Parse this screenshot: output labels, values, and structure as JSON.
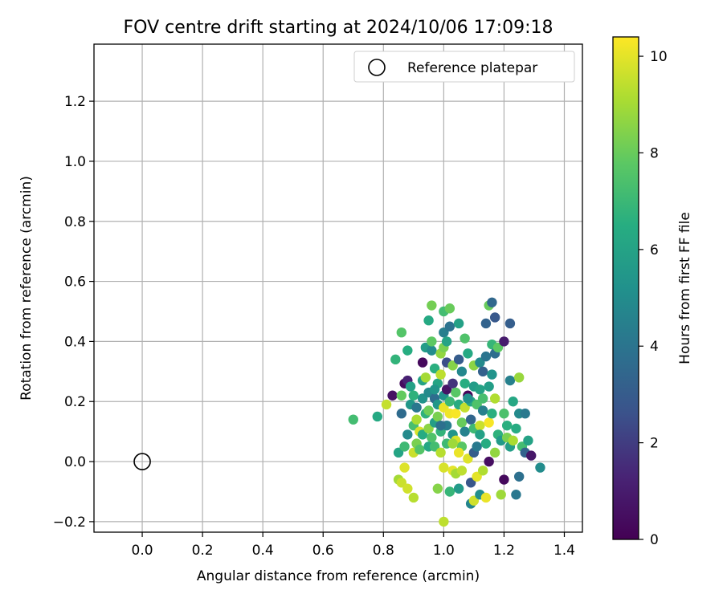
{
  "chart_data": {
    "type": "scatter",
    "title": "FOV centre drift starting at 2024/10/06 17:09:18",
    "xlabel": "Angular distance from reference (arcmin)",
    "ylabel": "Rotation from reference (arcmin)",
    "xlim": [
      -0.16,
      1.46
    ],
    "ylim": [
      -0.235,
      1.39
    ],
    "xticks": [
      0.0,
      0.2,
      0.4,
      0.6,
      0.8,
      1.0,
      1.2,
      1.4
    ],
    "xtick_labels": [
      "0.0",
      "0.2",
      "0.4",
      "0.6",
      "0.8",
      "1.0",
      "1.2",
      "1.4"
    ],
    "yticks": [
      -0.2,
      0.0,
      0.2,
      0.4,
      0.6,
      0.8,
      1.0,
      1.2
    ],
    "ytick_labels": [
      "−0.2",
      "0.0",
      "0.2",
      "0.4",
      "0.6",
      "0.8",
      "1.0",
      "1.2"
    ],
    "grid": true,
    "legend": {
      "position": "top-right",
      "entries": [
        "Reference platepar"
      ]
    },
    "reference_point": {
      "x": 0.0,
      "y": 0.0
    },
    "colorbar": {
      "label": "Hours from first FF file",
      "range": [
        0,
        10.4
      ],
      "ticks": [
        0,
        2,
        4,
        6,
        8,
        10
      ],
      "tick_labels": [
        "0",
        "2",
        "4",
        "6",
        "8",
        "10"
      ],
      "colormap": "viridis"
    },
    "points": [
      [
        0.7,
        0.14,
        7.2
      ],
      [
        0.78,
        0.15,
        6.3
      ],
      [
        0.81,
        0.19,
        9.5
      ],
      [
        0.83,
        0.22,
        0.6
      ],
      [
        0.84,
        0.34,
        6.8
      ],
      [
        0.85,
        0.03,
        6.1
      ],
      [
        0.85,
        -0.06,
        9.0
      ],
      [
        0.86,
        0.43,
        7.6
      ],
      [
        0.86,
        0.22,
        7.9
      ],
      [
        0.86,
        0.16,
        3.6
      ],
      [
        0.86,
        -0.07,
        9.6
      ],
      [
        0.87,
        0.05,
        7.1
      ],
      [
        0.87,
        0.26,
        0.4
      ],
      [
        0.87,
        -0.02,
        9.9
      ],
      [
        0.88,
        0.27,
        1.2
      ],
      [
        0.88,
        -0.09,
        9.7
      ],
      [
        0.88,
        0.37,
        6.5
      ],
      [
        0.88,
        0.09,
        4.9
      ],
      [
        0.89,
        0.25,
        5.9
      ],
      [
        0.89,
        0.19,
        5.5
      ],
      [
        0.9,
        0.22,
        6.7
      ],
      [
        0.9,
        0.03,
        9.6
      ],
      [
        0.9,
        -0.12,
        9.3
      ],
      [
        0.9,
        0.12,
        7.3
      ],
      [
        0.91,
        0.06,
        8.3
      ],
      [
        0.91,
        0.18,
        4.1
      ],
      [
        0.91,
        0.14,
        9.1
      ],
      [
        0.92,
        0.1,
        9.8
      ],
      [
        0.92,
        0.04,
        7.6
      ],
      [
        0.93,
        0.21,
        5.3
      ],
      [
        0.93,
        0.27,
        6.0
      ],
      [
        0.93,
        0.33,
        0.3
      ],
      [
        0.93,
        0.09,
        6.4
      ],
      [
        0.94,
        0.28,
        9.0
      ],
      [
        0.94,
        0.38,
        5.7
      ],
      [
        0.94,
        0.16,
        6.7
      ],
      [
        0.95,
        0.05,
        6.2
      ],
      [
        0.95,
        0.11,
        8.6
      ],
      [
        0.95,
        0.17,
        8.1
      ],
      [
        0.95,
        0.23,
        4.9
      ],
      [
        0.95,
        0.47,
        6.3
      ],
      [
        0.96,
        0.37,
        5.0
      ],
      [
        0.96,
        0.4,
        7.8
      ],
      [
        0.96,
        0.52,
        8.2
      ],
      [
        0.96,
        0.08,
        7.5
      ],
      [
        0.97,
        0.31,
        6.6
      ],
      [
        0.97,
        0.21,
        3.7
      ],
      [
        0.97,
        0.13,
        5.8
      ],
      [
        0.97,
        0.05,
        7.2
      ],
      [
        0.98,
        0.19,
        5.5
      ],
      [
        0.98,
        0.26,
        6.1
      ],
      [
        0.98,
        0.15,
        8.3
      ],
      [
        0.98,
        -0.09,
        8.5
      ],
      [
        0.99,
        0.03,
        9.3
      ],
      [
        0.99,
        0.36,
        8.7
      ],
      [
        0.99,
        0.29,
        9.4
      ],
      [
        0.99,
        0.1,
        6.8
      ],
      [
        1.0,
        0.38,
        8.3
      ],
      [
        1.0,
        0.22,
        5.2
      ],
      [
        1.0,
        0.5,
        7.2
      ],
      [
        1.0,
        0.43,
        4.4
      ],
      [
        1.0,
        0.18,
        10.1
      ],
      [
        1.0,
        -0.02,
        9.8
      ],
      [
        1.0,
        -0.2,
        9.4
      ],
      [
        1.01,
        0.33,
        2.5
      ],
      [
        1.01,
        0.24,
        0.7
      ],
      [
        1.01,
        0.12,
        4.4
      ],
      [
        1.01,
        0.06,
        7.1
      ],
      [
        1.01,
        0.4,
        6.0
      ],
      [
        1.02,
        0.45,
        3.9
      ],
      [
        1.02,
        0.51,
        8.0
      ],
      [
        1.02,
        0.16,
        10.2
      ],
      [
        1.02,
        0.2,
        7.0
      ],
      [
        1.02,
        -0.1,
        6.9
      ],
      [
        1.03,
        0.32,
        8.5
      ],
      [
        1.03,
        0.26,
        1.7
      ],
      [
        1.03,
        0.09,
        5.4
      ],
      [
        1.03,
        -0.03,
        10.0
      ],
      [
        1.04,
        0.16,
        10.3
      ],
      [
        1.04,
        0.23,
        7.7
      ],
      [
        1.04,
        0.07,
        9.8
      ],
      [
        1.04,
        -0.04,
        9.0
      ],
      [
        1.05,
        0.46,
        5.9
      ],
      [
        1.05,
        0.34,
        3.0
      ],
      [
        1.05,
        0.19,
        6.4
      ],
      [
        1.05,
        -0.09,
        5.6
      ],
      [
        1.06,
        0.3,
        4.8
      ],
      [
        1.06,
        0.13,
        8.0
      ],
      [
        1.06,
        0.05,
        7.7
      ],
      [
        1.06,
        -0.03,
        9.4
      ],
      [
        1.07,
        0.26,
        6.5
      ],
      [
        1.07,
        0.41,
        7.5
      ],
      [
        1.07,
        0.18,
        9.5
      ],
      [
        1.07,
        0.1,
        4.6
      ],
      [
        1.08,
        0.36,
        6.3
      ],
      [
        1.08,
        0.22,
        0.2
      ],
      [
        1.08,
        0.01,
        9.9
      ],
      [
        1.09,
        0.2,
        6.2
      ],
      [
        1.09,
        0.14,
        3.4
      ],
      [
        1.09,
        -0.07,
        2.8
      ],
      [
        1.09,
        -0.14,
        4.7
      ],
      [
        1.1,
        0.32,
        8.6
      ],
      [
        1.1,
        0.25,
        5.7
      ],
      [
        1.1,
        0.11,
        7.1
      ],
      [
        1.1,
        0.03,
        3.1
      ],
      [
        1.1,
        -0.13,
        9.7
      ],
      [
        1.11,
        0.19,
        7.5
      ],
      [
        1.11,
        0.05,
        4.2
      ],
      [
        1.11,
        -0.05,
        10.0
      ],
      [
        1.12,
        0.33,
        4.9
      ],
      [
        1.12,
        0.24,
        6.0
      ],
      [
        1.12,
        0.12,
        9.6
      ],
      [
        1.12,
        -0.11,
        5.1
      ],
      [
        1.13,
        0.3,
        3.2
      ],
      [
        1.13,
        0.21,
        7.3
      ],
      [
        1.13,
        0.17,
        4.5
      ],
      [
        1.13,
        -0.03,
        9.2
      ],
      [
        1.14,
        0.35,
        4.0
      ],
      [
        1.14,
        0.46,
        3.3
      ],
      [
        1.14,
        0.06,
        6.4
      ],
      [
        1.14,
        -0.12,
        10.1
      ],
      [
        1.15,
        0.25,
        5.8
      ],
      [
        1.15,
        0.13,
        10.3
      ],
      [
        1.15,
        0.52,
        8.0
      ],
      [
        1.15,
        0.0,
        0.5
      ],
      [
        1.16,
        0.39,
        6.9
      ],
      [
        1.16,
        0.29,
        5.3
      ],
      [
        1.16,
        0.16,
        6.6
      ],
      [
        1.16,
        0.53,
        3.5
      ],
      [
        1.17,
        0.36,
        3.7
      ],
      [
        1.17,
        0.48,
        2.9
      ],
      [
        1.17,
        0.21,
        9.2
      ],
      [
        1.17,
        0.03,
        8.7
      ],
      [
        1.18,
        0.09,
        6.7
      ],
      [
        1.18,
        0.38,
        7.8
      ],
      [
        1.19,
        0.07,
        5.6
      ],
      [
        1.19,
        -0.11,
        8.9
      ],
      [
        1.2,
        0.16,
        7.4
      ],
      [
        1.2,
        0.4,
        1.0
      ],
      [
        1.2,
        -0.06,
        0.3
      ],
      [
        1.21,
        0.12,
        6.6
      ],
      [
        1.21,
        0.08,
        8.3
      ],
      [
        1.22,
        0.27,
        4.5
      ],
      [
        1.22,
        0.46,
        3.1
      ],
      [
        1.22,
        0.05,
        5.8
      ],
      [
        1.23,
        0.2,
        6.2
      ],
      [
        1.23,
        0.07,
        9.1
      ],
      [
        1.24,
        0.11,
        6.4
      ],
      [
        1.25,
        0.16,
        4.9
      ],
      [
        1.25,
        -0.05,
        3.8
      ],
      [
        1.25,
        0.28,
        8.8
      ],
      [
        1.26,
        0.05,
        7.2
      ],
      [
        1.27,
        0.16,
        4.2
      ],
      [
        1.27,
        0.03,
        3.3
      ],
      [
        1.28,
        0.07,
        6.0
      ],
      [
        1.29,
        0.02,
        0.8
      ],
      [
        1.32,
        -0.02,
        5.0
      ],
      [
        1.24,
        -0.11,
        4.1
      ],
      [
        1.05,
        0.03,
        10.1
      ],
      [
        1.08,
        0.21,
        5.2
      ],
      [
        1.12,
        0.09,
        5.9
      ],
      [
        0.99,
        0.12,
        3.8
      ],
      [
        1.03,
        0.06,
        8.9
      ],
      [
        0.97,
        0.24,
        5.4
      ]
    ]
  }
}
